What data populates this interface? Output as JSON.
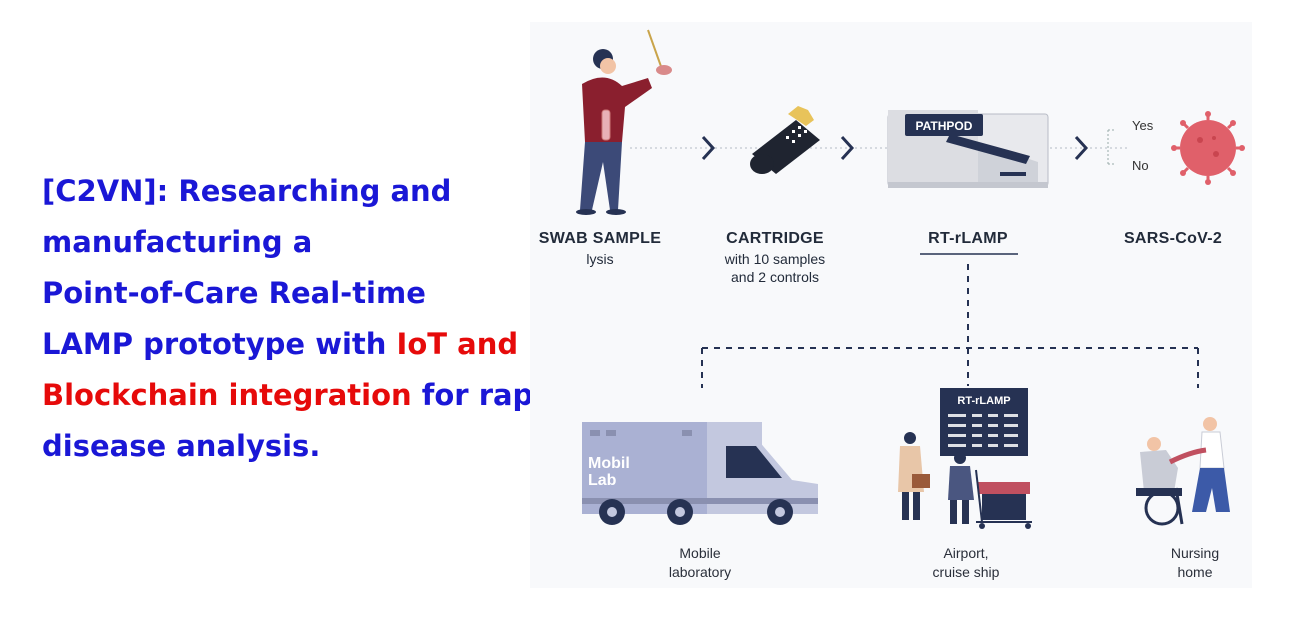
{
  "title": {
    "line1": "[C2VN]: Researching and",
    "line2": "manufacturing a",
    "line3": "Point-of-Care Real-time",
    "line4_blue": "LAMP prototype with ",
    "line4_red": "IoT and",
    "line5_red": "Blockchain integration",
    "line5_blue": " for rapid",
    "line6": "disease analysis."
  },
  "steps": [
    {
      "label": "SWAB SAMPLE",
      "sub": "lysis"
    },
    {
      "label": "CARTRIDGE",
      "sub": "with 10 samples",
      "sub2": "and 2 controls"
    },
    {
      "label": "RT-rLAMP"
    },
    {
      "label": "SARS-CoV-2"
    }
  ],
  "device_brand": "PATHPOD",
  "result": {
    "yes": "Yes",
    "no": "No"
  },
  "screen_title": "RT-rLAMP",
  "van_text": {
    "line1": "Mobil",
    "line2": "Lab"
  },
  "locations": [
    {
      "line1": "Mobile",
      "line2": "laboratory"
    },
    {
      "line1": "Airport,",
      "line2": "cruise ship"
    },
    {
      "line1": "Nursing",
      "line2": "home"
    }
  ],
  "colors": {
    "title_blue": "#1a17d6",
    "title_red": "#e60a0a",
    "navy": "#263253",
    "virus": "#e0606a"
  }
}
